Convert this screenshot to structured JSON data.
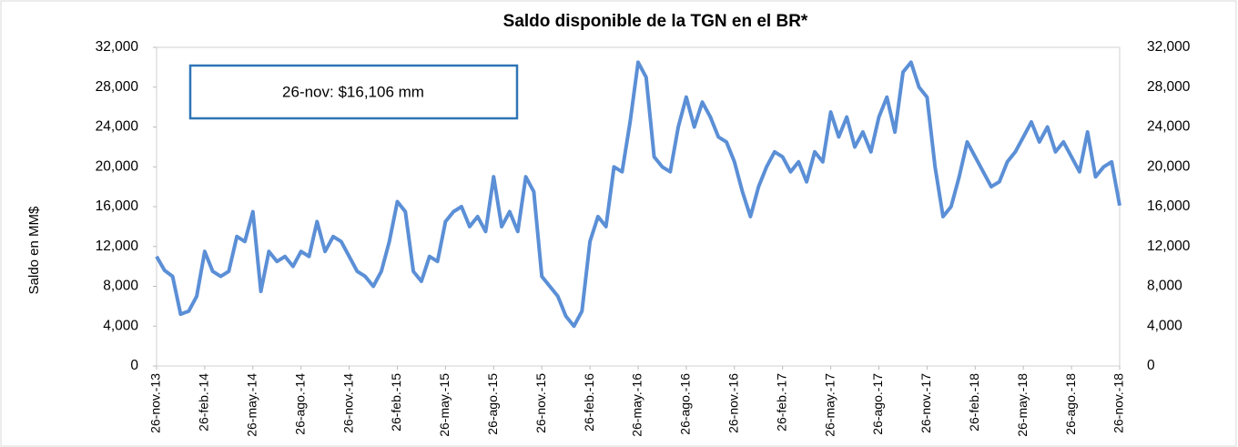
{
  "chart_data": {
    "type": "line",
    "title": "Saldo disponible de la TGN en el BR*",
    "y_label": "Saldo en MM$",
    "annotation": "26-nov: $16,106 mm",
    "color": "#5b8fd6",
    "categories": [
      "26-nov.-13",
      null,
      null,
      null,
      null,
      null,
      "26-feb.-14",
      null,
      null,
      null,
      null,
      null,
      "26-may.-14",
      null,
      null,
      null,
      null,
      null,
      "26-ago.-14",
      null,
      null,
      null,
      null,
      null,
      "26-nov.-14",
      null,
      null,
      null,
      null,
      null,
      "26-feb.-15",
      null,
      null,
      null,
      null,
      null,
      "26-may.-15",
      null,
      null,
      null,
      null,
      null,
      "26-ago.-15",
      null,
      null,
      null,
      null,
      null,
      "26-nov.-15",
      null,
      null,
      null,
      null,
      null,
      "26-feb.-16",
      null,
      null,
      null,
      null,
      null,
      "26-may.-16",
      null,
      null,
      null,
      null,
      null,
      "26-ago.-16",
      null,
      null,
      null,
      null,
      null,
      "26-nov.-16",
      null,
      null,
      null,
      null,
      null,
      "26-feb.-17",
      null,
      null,
      null,
      null,
      null,
      "26-may.-17",
      null,
      null,
      null,
      null,
      null,
      "26-ago.-17",
      null,
      null,
      null,
      null,
      null,
      "26-nov.-17",
      null,
      null,
      null,
      null,
      null,
      "26-feb.-18",
      null,
      null,
      null,
      null,
      null,
      "26-may.-18",
      null,
      null,
      null,
      null,
      null,
      "26-ago.-18",
      null,
      null,
      null,
      null,
      null,
      "26-nov.-18"
    ],
    "values": [
      11000,
      9600,
      9000,
      5200,
      5500,
      7000,
      11500,
      9500,
      9000,
      9500,
      13000,
      12500,
      15500,
      7500,
      11500,
      10500,
      11000,
      10000,
      11500,
      11000,
      14500,
      11500,
      13000,
      12500,
      11000,
      9500,
      9000,
      8000,
      9500,
      12500,
      16500,
      15500,
      9500,
      8500,
      11000,
      10500,
      14500,
      15500,
      16000,
      14000,
      15000,
      13500,
      19000,
      14000,
      15500,
      13500,
      19000,
      17500,
      9000,
      8000,
      7000,
      5000,
      4000,
      5500,
      12500,
      15000,
      14000,
      20000,
      19500,
      24500,
      30500,
      29000,
      21000,
      20000,
      19500,
      24000,
      27000,
      24000,
      26500,
      25000,
      23000,
      22500,
      20500,
      17500,
      15000,
      18000,
      20000,
      21500,
      21000,
      19500,
      20500,
      18500,
      21500,
      20500,
      25500,
      23000,
      25000,
      22000,
      23500,
      21500,
      25000,
      27000,
      23500,
      29500,
      30500,
      28000,
      27000,
      20000,
      15000,
      16000,
      19000,
      22500,
      21000,
      19500,
      18000,
      18500,
      20500,
      21500,
      23000,
      24500,
      22500,
      24000,
      21500,
      22500,
      21000,
      19500,
      23500,
      19000,
      20000,
      20500,
      16106
    ],
    "ylim": [
      0,
      32000
    ],
    "yticks": [
      0,
      {
        "value": 4000,
        "label": "4,000"
      },
      {
        "value": 8000,
        "label": "8,000"
      },
      {
        "value": 12000,
        "label": "12,000"
      },
      {
        "value": 16000,
        "label": "16,000"
      },
      {
        "value": 20000,
        "label": "20,000"
      },
      {
        "value": 24000,
        "label": "24,000"
      },
      {
        "value": 28000,
        "label": "28,000"
      },
      {
        "value": 32000,
        "label": "32,000"
      }
    ]
  }
}
